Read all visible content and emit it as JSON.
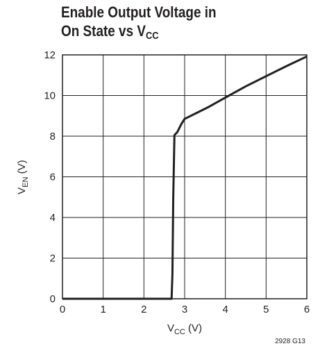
{
  "chart_data": {
    "type": "line",
    "title_line1": "Enable Output Voltage in",
    "title_line2_main": "On State vs V",
    "title_line2_sub": "CC",
    "xlabel_main": "V",
    "xlabel_sub": "CC",
    "xlabel_unit": " (V)",
    "ylabel_main": "V",
    "ylabel_sub": "EN",
    "ylabel_unit": " (V)",
    "figure_code": "2928 G13",
    "xlim": [
      0,
      6
    ],
    "ylim": [
      0,
      12
    ],
    "xticks": [
      "0",
      "1",
      "2",
      "3",
      "4",
      "5",
      "6"
    ],
    "yticks": [
      "0",
      "2",
      "4",
      "6",
      "8",
      "10",
      "12"
    ],
    "grid": true,
    "series": [
      {
        "x": [
          0,
          2.5,
          2.68,
          2.7,
          2.72,
          2.75,
          2.82,
          2.92,
          3.0,
          3.1,
          3.3,
          3.6,
          4.0,
          4.5,
          5.0,
          5.5,
          6.0
        ],
        "y": [
          0,
          0,
          0,
          1.2,
          5.0,
          8.05,
          8.2,
          8.6,
          8.85,
          8.95,
          9.15,
          9.45,
          9.9,
          10.45,
          10.95,
          11.45,
          11.92
        ]
      }
    ]
  }
}
